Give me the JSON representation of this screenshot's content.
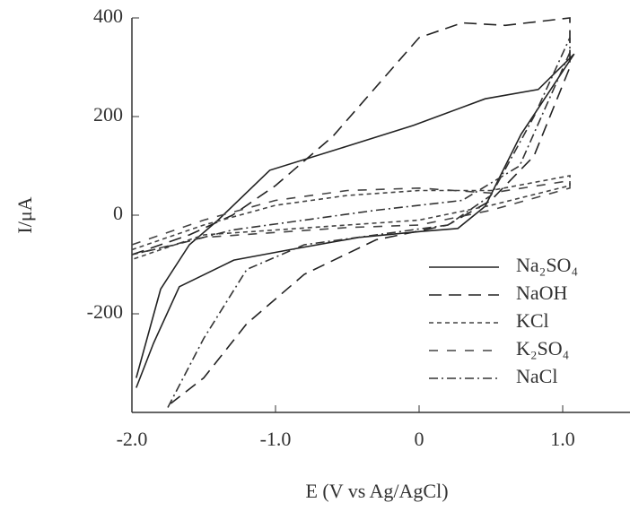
{
  "chart_data": {
    "type": "line",
    "x_label": "E (V vs Ag/AgCl)",
    "y_label": "I/μA",
    "xlim": [
      -2.0,
      1.4
    ],
    "ylim": [
      -400,
      400
    ],
    "xticks": [
      {
        "value": -2,
        "label": "-2.0"
      },
      {
        "value": -1,
        "label": "-1.0"
      },
      0,
      {
        "value": 1,
        "label": "1.0"
      }
    ],
    "yticks": [
      400,
      200,
      0,
      -200
    ],
    "legend": "lower right",
    "series": [
      {
        "name": "Na₂SO₄",
        "color": "#222222",
        "dash": [],
        "x": [
          -1.97,
          -1.85,
          -1.67,
          -1.29,
          -0.9,
          -0.42,
          0.02,
          0.27,
          0.46,
          0.71,
          1.08,
          0.83,
          0.46,
          -0.04,
          -0.5,
          -1.04,
          -1.4,
          -1.6,
          -1.8,
          -1.97
        ],
        "values": [
          -350,
          -260,
          -145,
          -91,
          -70,
          -45,
          -33,
          -27,
          18,
          164,
          327,
          255,
          236,
          182,
          140,
          91,
          -10,
          -60,
          -150,
          -330
        ]
      },
      {
        "name": "NaOH",
        "color": "#222222",
        "dash": [
          14,
          8
        ],
        "x": [
          -2.0,
          -1.6,
          -1.3,
          -1.0,
          -0.6,
          -0.3,
          0.0,
          0.3,
          0.6,
          1.05,
          1.05,
          0.8,
          0.5,
          0.2,
          -0.3,
          -0.8,
          -1.2,
          -1.5,
          -1.73
        ],
        "values": [
          -80,
          -40,
          0,
          60,
          160,
          260,
          360,
          390,
          385,
          400,
          300,
          120,
          30,
          -20,
          -50,
          -120,
          -220,
          -330,
          -382
        ]
      },
      {
        "name": "KCl",
        "color": "#444444",
        "dash": [
          5,
          4
        ],
        "x": [
          -2.0,
          -1.5,
          -1.0,
          -0.5,
          0.0,
          0.5,
          1.05,
          1.05,
          0.5,
          0.0,
          -0.5,
          -1.0,
          -1.5,
          -2.0
        ],
        "values": [
          -70,
          -20,
          20,
          40,
          50,
          50,
          80,
          60,
          20,
          -10,
          -20,
          -30,
          -40,
          -90
        ]
      },
      {
        "name": "K₂SO₄",
        "color": "#444444",
        "dash": [
          10,
          10
        ],
        "x": [
          -2.0,
          -1.5,
          -1.0,
          -0.5,
          0.0,
          0.5,
          1.05,
          1.05,
          0.5,
          0.0,
          -0.5,
          -1.0,
          -1.5,
          -2.0
        ],
        "values": [
          -60,
          -10,
          30,
          50,
          55,
          45,
          70,
          55,
          10,
          -20,
          -25,
          -35,
          -45,
          -80
        ]
      },
      {
        "name": "NaCl",
        "color": "#333333",
        "dash": [
          10,
          4,
          2,
          4
        ],
        "x": [
          -1.75,
          -1.5,
          -1.2,
          -0.8,
          -0.3,
          0.2,
          0.5,
          0.8,
          1.05,
          1.05,
          0.7,
          0.3,
          -0.3,
          -0.8,
          -1.3,
          -1.7,
          -2.0
        ],
        "values": [
          -390,
          -250,
          -110,
          -60,
          -40,
          -20,
          40,
          200,
          360,
          330,
          100,
          30,
          10,
          -10,
          -30,
          -60,
          -80
        ]
      }
    ]
  }
}
